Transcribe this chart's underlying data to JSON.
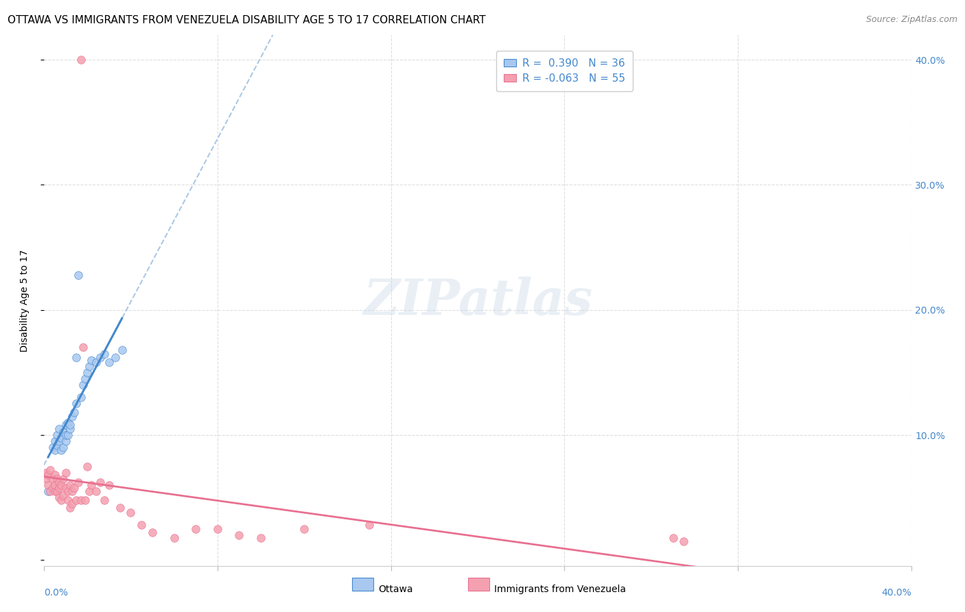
{
  "title": "OTTAWA VS IMMIGRANTS FROM VENEZUELA DISABILITY AGE 5 TO 17 CORRELATION CHART",
  "source": "Source: ZipAtlas.com",
  "ylabel": "Disability Age 5 to 17",
  "legend_ottawa": "Ottawa",
  "legend_venezuela": "Immigrants from Venezuela",
  "ottawa_R": 0.39,
  "ottawa_N": 36,
  "venezuela_R": -0.063,
  "venezuela_N": 55,
  "ottawa_color": "#a8c8f0",
  "venezuela_color": "#f4a0b0",
  "ottawa_line_color": "#4488cc",
  "venezuela_line_color": "#e87090",
  "dashed_line_color": "#99bbdd",
  "background_color": "#ffffff",
  "watermark": "ZIPatlas",
  "xlim": [
    0.0,
    0.4
  ],
  "ylim": [
    -0.005,
    0.42
  ],
  "ottawa_x": [
    0.002,
    0.004,
    0.005,
    0.005,
    0.006,
    0.006,
    0.007,
    0.007,
    0.008,
    0.008,
    0.009,
    0.009,
    0.01,
    0.01,
    0.01,
    0.011,
    0.011,
    0.012,
    0.013,
    0.014,
    0.015,
    0.016,
    0.017,
    0.018,
    0.019,
    0.02,
    0.021,
    0.022,
    0.024,
    0.026,
    0.028,
    0.03,
    0.033,
    0.036,
    0.015,
    0.012
  ],
  "ottawa_y": [
    0.055,
    0.09,
    0.088,
    0.095,
    0.092,
    0.1,
    0.095,
    0.105,
    0.088,
    0.098,
    0.09,
    0.102,
    0.095,
    0.1,
    0.108,
    0.1,
    0.11,
    0.105,
    0.115,
    0.118,
    0.125,
    0.228,
    0.13,
    0.14,
    0.145,
    0.15,
    0.155,
    0.16,
    0.158,
    0.162,
    0.165,
    0.158,
    0.162,
    0.168,
    0.162,
    0.108
  ],
  "venezuela_x": [
    0.001,
    0.001,
    0.002,
    0.002,
    0.003,
    0.003,
    0.004,
    0.004,
    0.005,
    0.005,
    0.005,
    0.006,
    0.006,
    0.007,
    0.007,
    0.007,
    0.008,
    0.008,
    0.009,
    0.009,
    0.01,
    0.01,
    0.011,
    0.011,
    0.012,
    0.012,
    0.013,
    0.013,
    0.014,
    0.015,
    0.016,
    0.017,
    0.018,
    0.019,
    0.02,
    0.021,
    0.022,
    0.024,
    0.026,
    0.028,
    0.03,
    0.035,
    0.04,
    0.045,
    0.05,
    0.06,
    0.07,
    0.08,
    0.09,
    0.1,
    0.12,
    0.15,
    0.29,
    0.295,
    0.017
  ],
  "venezuela_y": [
    0.065,
    0.07,
    0.06,
    0.068,
    0.055,
    0.072,
    0.058,
    0.065,
    0.055,
    0.068,
    0.06,
    0.055,
    0.065,
    0.05,
    0.062,
    0.058,
    0.048,
    0.06,
    0.052,
    0.065,
    0.07,
    0.058,
    0.055,
    0.048,
    0.06,
    0.042,
    0.055,
    0.045,
    0.058,
    0.048,
    0.062,
    0.048,
    0.17,
    0.048,
    0.075,
    0.055,
    0.06,
    0.055,
    0.062,
    0.048,
    0.06,
    0.042,
    0.038,
    0.028,
    0.022,
    0.018,
    0.025,
    0.025,
    0.02,
    0.018,
    0.025,
    0.028,
    0.018,
    0.015,
    0.4
  ],
  "grid_color": "#dddddd",
  "yticks": [
    0.0,
    0.1,
    0.2,
    0.3,
    0.4
  ],
  "ytick_labels": [
    "",
    "10.0%",
    "20.0%",
    "30.0%",
    "40.0%"
  ],
  "title_fontsize": 11,
  "axis_label_fontsize": 10,
  "tick_fontsize": 10,
  "legend_fontsize": 11,
  "source_fontsize": 9
}
